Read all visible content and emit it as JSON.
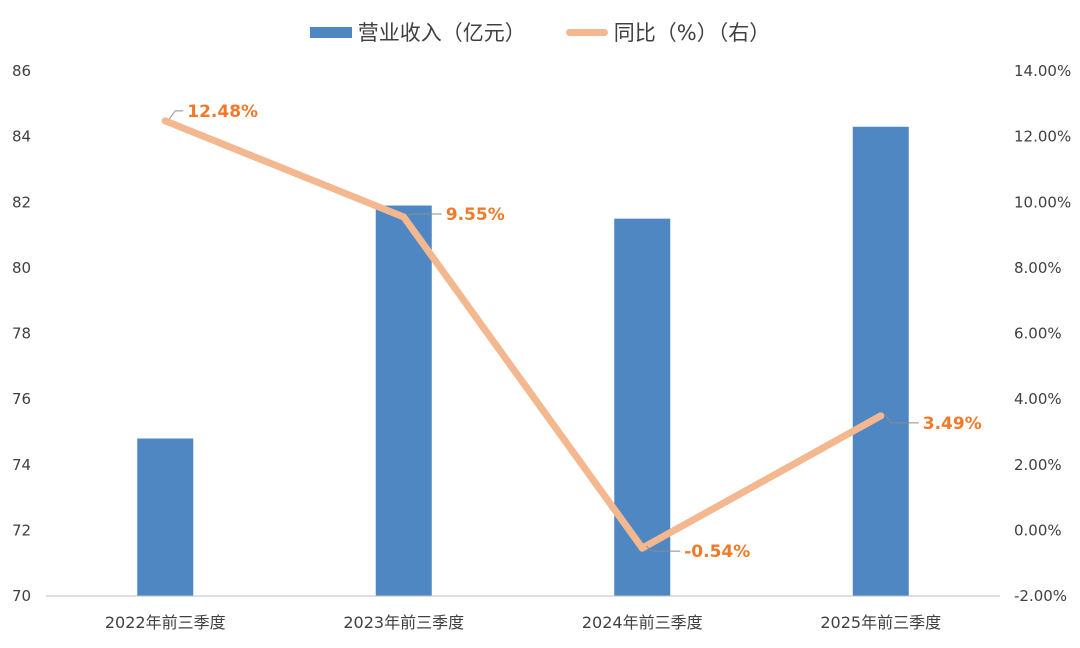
{
  "chart_data": {
    "type": "bar+line",
    "categories": [
      "2022年前三季度",
      "2023年前三季度",
      "2024年前三季度",
      "2025年前三季度"
    ],
    "series": [
      {
        "name": "营业收入（亿元）",
        "type": "bar",
        "axis": "left",
        "color": "#4E87C1",
        "values": [
          74.8,
          81.9,
          81.5,
          84.3
        ]
      },
      {
        "name": "同比（%）（右）",
        "type": "line",
        "axis": "right",
        "color": "#F4B890",
        "values": [
          12.48,
          9.55,
          -0.54,
          3.49
        ],
        "labels": [
          "12.48%",
          "9.55%",
          "-0.54%",
          "3.49%"
        ],
        "label_color": "#F07A2A"
      }
    ],
    "left_axis": {
      "min": 70,
      "max": 86,
      "step": 2,
      "ticks": [
        "70",
        "72",
        "74",
        "76",
        "78",
        "80",
        "82",
        "84",
        "86"
      ]
    },
    "right_axis": {
      "min": -2,
      "max": 14,
      "step": 2,
      "ticks": [
        "-2.00%",
        "0.00%",
        "2.00%",
        "4.00%",
        "6.00%",
        "8.00%",
        "10.00%",
        "12.00%",
        "14.00%"
      ]
    },
    "legend_position": "top"
  },
  "legend": {
    "bar_label": "营业收入（亿元）",
    "line_label": "同比（%）（右）"
  }
}
